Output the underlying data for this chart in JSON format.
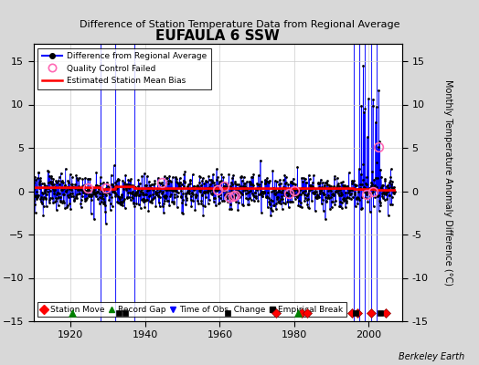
{
  "title": "EUFAULA 6 SSW",
  "subtitle": "Difference of Station Temperature Data from Regional Average",
  "ylabel": "Monthly Temperature Anomaly Difference (°C)",
  "ylim": [
    -15,
    17
  ],
  "yticks": [
    -15,
    -10,
    -5,
    0,
    5,
    10,
    15
  ],
  "year_start": 1910,
  "year_end": 2009,
  "xticks": [
    1920,
    1940,
    1960,
    1980,
    2000
  ],
  "background_color": "#d8d8d8",
  "plot_bg_color": "#ffffff",
  "credit": "Berkeley Earth",
  "vertical_lines": [
    1928.0,
    1932.0,
    1937.0,
    1996.0,
    1997.5,
    1999.0,
    2000.5,
    2002.0
  ],
  "station_moves": [
    1975.0,
    1982.0,
    1983.5,
    1995.5,
    1997.0,
    2000.5,
    2004.5
  ],
  "record_gaps": [
    1920.5,
    1981.0
  ],
  "time_obs_changes": [],
  "empirical_breaks": [
    1933.0,
    1934.5,
    1962.0,
    1996.5,
    2003.0
  ],
  "mean_bias_value": 0.3
}
